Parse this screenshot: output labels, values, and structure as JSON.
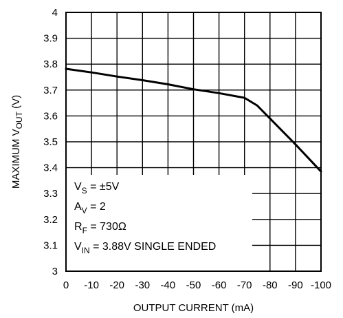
{
  "chart_data": {
    "type": "line",
    "title": "",
    "xlabel": "OUTPUT CURRENT (mA)",
    "ylabel": {
      "main": "MAXIMUM V",
      "sub": "OUT",
      "suffix": " (V)"
    },
    "xlim": [
      0,
      -100
    ],
    "ylim": [
      3,
      4
    ],
    "x_ticks": [
      0,
      -10,
      -20,
      -30,
      -40,
      -50,
      -60,
      -70,
      -80,
      -90,
      -100
    ],
    "x_tick_labels": [
      "0",
      "-10",
      "-20",
      "-30",
      "-40",
      "-50",
      "-60",
      "-70",
      "-80",
      "-90",
      "-100"
    ],
    "y_ticks": [
      3,
      3.1,
      3.2,
      3.3,
      3.4,
      3.5,
      3.6,
      3.7,
      3.8,
      3.9,
      4
    ],
    "y_tick_labels": [
      "3",
      "3.1",
      "3.2",
      "3.3",
      "3.4",
      "3.5",
      "3.6",
      "3.7",
      "3.8",
      "3.9",
      "4"
    ],
    "grid": true,
    "series": [
      {
        "x": [
          0,
          -10,
          -20,
          -30,
          -40,
          -50,
          -60,
          -70,
          -75,
          -80,
          -90,
          -100
        ],
        "y": [
          3.782,
          3.768,
          3.752,
          3.738,
          3.722,
          3.703,
          3.688,
          3.67,
          3.64,
          3.59,
          3.49,
          3.385
        ]
      }
    ],
    "annotations": [
      {
        "main": "V",
        "sub": "S",
        "rest": " = ±5V"
      },
      {
        "main": "A",
        "sub": "V",
        "rest": " = 2"
      },
      {
        "main": "R",
        "sub": "F",
        "rest": " = 730Ω"
      },
      {
        "main": "V",
        "sub": "IN",
        "rest": " = 3.88V SINGLE ENDED"
      }
    ]
  }
}
